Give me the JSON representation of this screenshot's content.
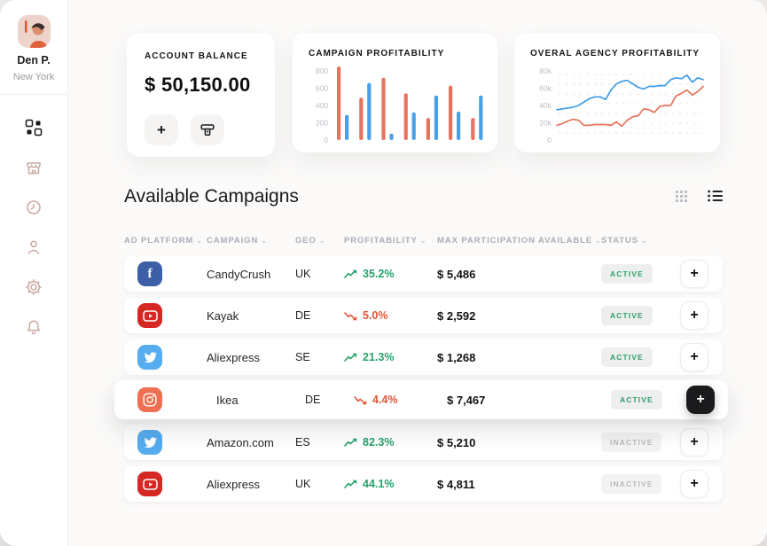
{
  "colors": {
    "accent_red": "#e8735c",
    "accent_blue": "#4aa0e6",
    "green_text": "#23a169",
    "red_text": "#e25637",
    "facebook": "#3d5fa8",
    "youtube": "#d62723",
    "twitter": "#55acee",
    "instagram": "#ee7052",
    "sidebar_icon": "#c9a8a0",
    "active_badge_text": "#2f9e68",
    "inactive_badge_text": "#b4b8bd"
  },
  "sidebar": {
    "user": {
      "name": "Den P.",
      "location": "New York"
    },
    "items": [
      {
        "id": "dashboard",
        "icon": "dashboard-icon",
        "active": true
      },
      {
        "id": "store",
        "icon": "store-icon",
        "active": false
      },
      {
        "id": "history",
        "icon": "clock-icon",
        "active": false
      },
      {
        "id": "profile",
        "icon": "person-icon",
        "active": false
      },
      {
        "id": "settings",
        "icon": "gear-icon",
        "active": false
      },
      {
        "id": "notifications",
        "icon": "bell-icon",
        "active": false
      }
    ]
  },
  "balance_card": {
    "title": "ACCOUNT BALANCE",
    "amount": "$ 50,150.00",
    "add_label": "+",
    "withdraw_icon": "card-withdraw-icon"
  },
  "chart_data": [
    {
      "id": "campaign_profitability",
      "type": "bar",
      "title": "CAMPAIGN PROFITABILITY",
      "categories": [
        1,
        2,
        3,
        4,
        5,
        6,
        7
      ],
      "series": [
        {
          "name": "series-red",
          "color": "#e8735c",
          "values": [
            850,
            490,
            720,
            540,
            255,
            630,
            255
          ]
        },
        {
          "name": "series-blue",
          "color": "#4aa0e6",
          "values": [
            290,
            660,
            75,
            320,
            515,
            330,
            515
          ]
        }
      ],
      "ylim": [
        0,
        800
      ],
      "yticks": [
        0,
        200,
        400,
        600,
        800
      ],
      "ytick_labels": [
        "0",
        "200",
        "400",
        "600",
        "800"
      ],
      "grid": false,
      "legend": "none"
    },
    {
      "id": "agency_profitability",
      "type": "line",
      "title": "OVERAL AGENCY PROFITABILITY",
      "series": [
        {
          "name": "line-blue",
          "color": "#3f9ce8",
          "values": [
            35000,
            36000,
            37000,
            38000,
            40000,
            44000,
            48000,
            50000,
            50000,
            47000,
            58000,
            65000,
            68000,
            69000,
            65000,
            61000,
            59000,
            62000,
            62000,
            63000,
            63000,
            70000,
            72000,
            71000,
            75000,
            67000,
            72000,
            70000
          ]
        },
        {
          "name": "line-orange",
          "color": "#e8735c",
          "values": [
            17000,
            19000,
            22000,
            24000,
            23000,
            17000,
            17000,
            18000,
            18000,
            18000,
            17000,
            21000,
            16000,
            23000,
            27000,
            28000,
            36000,
            35000,
            32000,
            39000,
            40000,
            40000,
            51000,
            54000,
            58000,
            52000,
            56000,
            62000
          ]
        }
      ],
      "ylim": [
        0,
        80000
      ],
      "yticks": [
        0,
        20000,
        40000,
        60000,
        80000
      ],
      "ytick_labels": [
        "0",
        "20k",
        "40k",
        "60k",
        "80k"
      ],
      "grid": "dotted",
      "legend": "none"
    }
  ],
  "table": {
    "title": "Available Campaigns",
    "plus_label": "+",
    "sort_caret": "⌄",
    "headers": [
      {
        "label": "AD PLATFORM"
      },
      {
        "label": "CAMPAIGN"
      },
      {
        "label": "GEO"
      },
      {
        "label": "PROFITABILITY"
      },
      {
        "label": "MAX PARTICIPATION AVAILABLE"
      },
      {
        "label": "STATUS"
      }
    ],
    "rows": [
      {
        "platform": "facebook",
        "campaign": "CandyCrush",
        "geo": "UK",
        "trend": "up",
        "profitability": "35.2%",
        "max_participation": "$ 5,486",
        "status": "ACTIVE",
        "active": true,
        "highlighted": false
      },
      {
        "platform": "youtube",
        "campaign": "Kayak",
        "geo": "DE",
        "trend": "down",
        "profitability": "5.0%",
        "max_participation": "$ 2,592",
        "status": "ACTIVE",
        "active": true,
        "highlighted": false
      },
      {
        "platform": "twitter",
        "campaign": "Aliexpress",
        "geo": "SE",
        "trend": "up",
        "profitability": "21.3%",
        "max_participation": "$ 1,268",
        "status": "ACTIVE",
        "active": true,
        "highlighted": false
      },
      {
        "platform": "instagram",
        "campaign": "Ikea",
        "geo": "DE",
        "trend": "down",
        "profitability": "4.4%",
        "max_participation": "$ 7,467",
        "status": "ACTIVE",
        "active": true,
        "highlighted": true
      },
      {
        "platform": "twitter",
        "campaign": "Amazon.com",
        "geo": "ES",
        "trend": "up",
        "profitability": "82.3%",
        "max_participation": "$ 5,210",
        "status": "INACTIVE",
        "active": false,
        "highlighted": false
      },
      {
        "platform": "youtube",
        "campaign": "Aliexpress",
        "geo": "UK",
        "trend": "up",
        "profitability": "44.1%",
        "max_participation": "$ 4,811",
        "status": "INACTIVE",
        "active": false,
        "highlighted": false
      }
    ]
  }
}
